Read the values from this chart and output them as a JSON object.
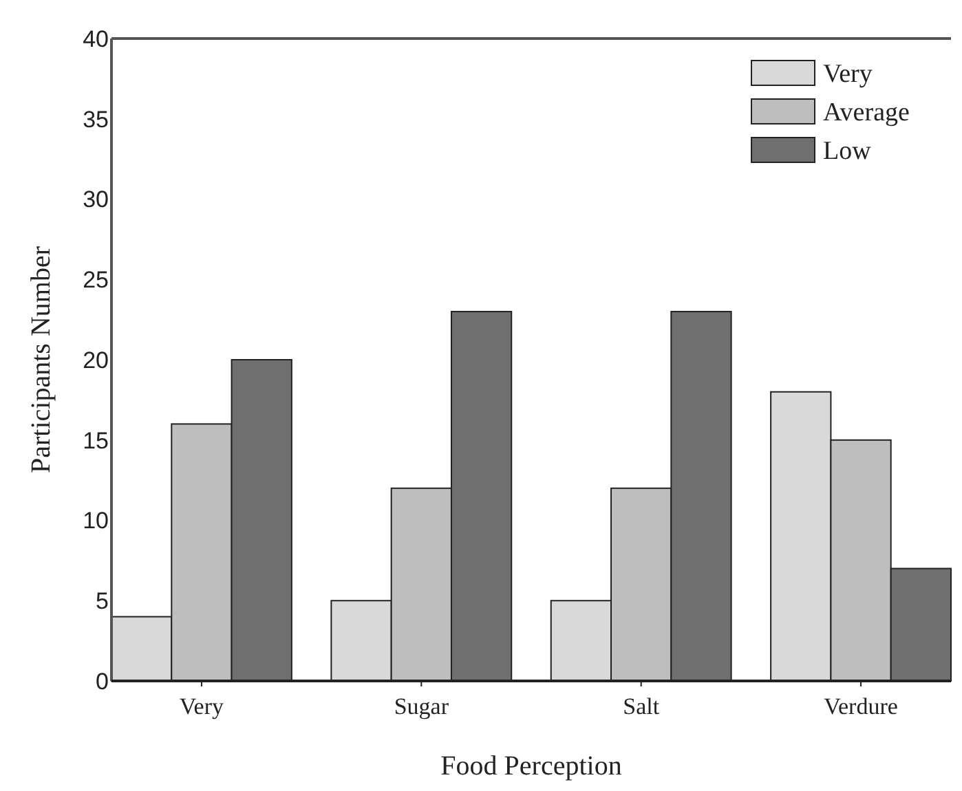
{
  "chart_data": {
    "type": "bar",
    "xlabel": "Food Perception",
    "ylabel": "Participants Number",
    "categories": [
      "Very",
      "Sugar",
      "Salt",
      "Verdure"
    ],
    "series": [
      {
        "name": "Very",
        "color": "#d9d9d9",
        "values": [
          4,
          5,
          5,
          18
        ]
      },
      {
        "name": "Average",
        "color": "#bebebe",
        "values": [
          16,
          12,
          12,
          15
        ]
      },
      {
        "name": "Low",
        "color": "#6f6f6f",
        "values": [
          20,
          23,
          23,
          7
        ]
      }
    ],
    "ylim": [
      0,
      40
    ],
    "yticks": [
      0,
      5,
      10,
      15,
      20,
      25,
      30,
      35,
      40
    ],
    "grid": false,
    "legend": "top right"
  }
}
